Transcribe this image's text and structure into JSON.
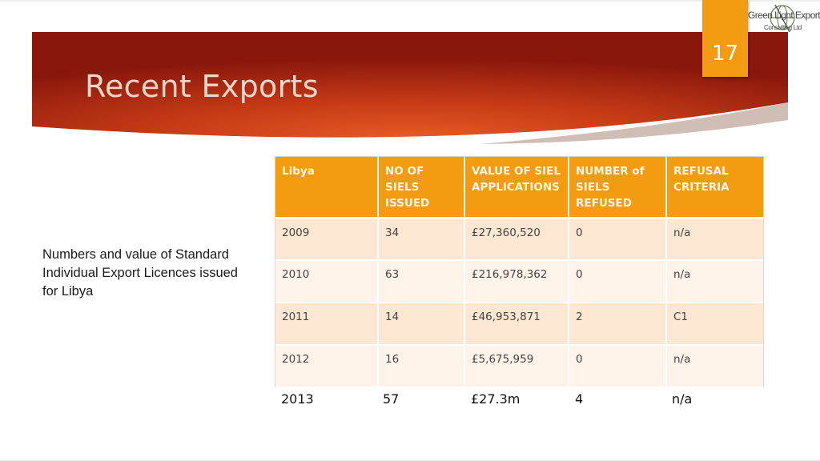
{
  "slide": {
    "title": "Recent Exports",
    "page_number": "17"
  },
  "logo": {
    "line1": "Green Light Exports",
    "line2": "Consulting Ltd"
  },
  "caption": "Numbers and value of Standard Individual Export Licences issued for Libya",
  "table": {
    "headers": [
      "Libya",
      "NO OF SIELS ISSUED",
      "VALUE OF SIEL APPLICATIONS",
      "NUMBER of SIELS REFUSED",
      "REFUSAL CRITERIA"
    ],
    "rows": [
      [
        "2009",
        "34",
        "£27,360,520",
        "0",
        "n/a"
      ],
      [
        "2010",
        "63",
        "£216,978,362",
        "0",
        "n/a"
      ],
      [
        "2011",
        "14",
        "£46,953,871",
        "2",
        "C1"
      ],
      [
        "2012",
        "16",
        "£5,675,959",
        "0",
        "n/a"
      ]
    ]
  },
  "extra_row": [
    "2013",
    "57",
    "£27.3m",
    "4",
    "n/a"
  ],
  "colors": {
    "banner_dark": "#8e1a0d",
    "banner_mid": "#d44a1c",
    "accent_orange": "#f39c12",
    "row_odd": "#fde7d3",
    "row_even": "#fef3e8"
  }
}
